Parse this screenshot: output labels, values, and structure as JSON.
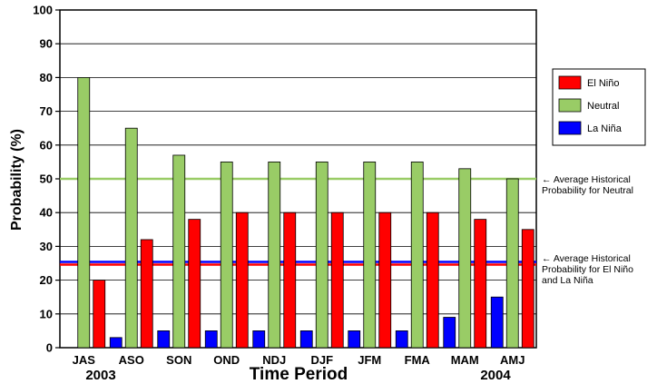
{
  "chart_data": {
    "type": "bar",
    "categories": [
      "JAS",
      "ASO",
      "SON",
      "OND",
      "NDJ",
      "DJF",
      "JFM",
      "FMA",
      "MAM",
      "AMJ"
    ],
    "series": [
      {
        "name": "El Niño",
        "color": "#ff0000",
        "values": [
          20,
          32,
          38,
          40,
          40,
          40,
          40,
          40,
          38,
          35
        ]
      },
      {
        "name": "Neutral",
        "color": "#99cc66",
        "values": [
          80,
          65,
          57,
          55,
          55,
          55,
          55,
          55,
          53,
          50
        ]
      },
      {
        "name": "La Niña",
        "color": "#0000ff",
        "values": [
          0,
          3,
          5,
          5,
          5,
          5,
          5,
          5,
          9,
          15
        ]
      }
    ],
    "bar_order": [
      "La Niña",
      "Neutral",
      "El Niño"
    ],
    "xlabel": "Time Period",
    "ylabel": "Probability (%)",
    "ylim": [
      0,
      100
    ],
    "yticks": [
      0,
      10,
      20,
      30,
      40,
      50,
      60,
      70,
      80,
      90,
      100
    ],
    "year_start": "2003",
    "year_end": "2004",
    "grid": true,
    "legend_position": "right",
    "reference_lines": [
      {
        "value": 50,
        "color": "#99cc66",
        "label_lines": [
          "← Average Historical",
          "Probability for Neutral"
        ]
      },
      {
        "value": 25,
        "color": "#ff0000",
        "label_lines": [
          "← Average Historical",
          "Probability for El Niño",
          "and La Niña"
        ]
      },
      {
        "value": 25,
        "color": "#0000ff"
      }
    ]
  }
}
